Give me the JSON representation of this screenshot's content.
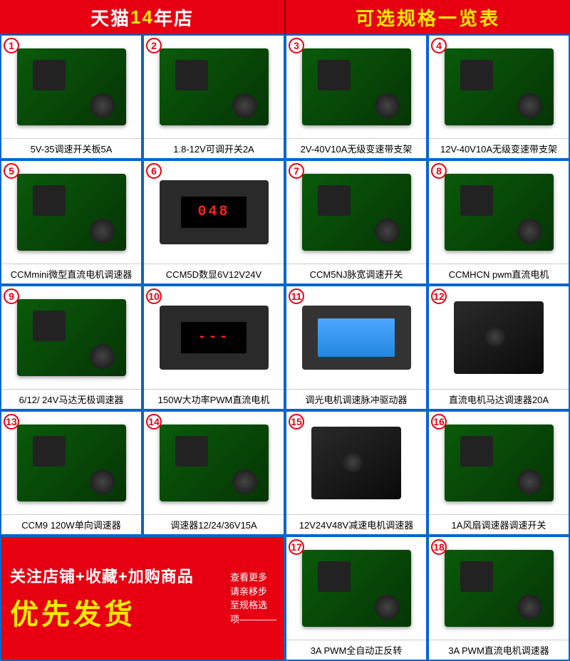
{
  "header": {
    "left_prefix": "天猫",
    "left_highlight": "14",
    "left_suffix": "年店",
    "right": "可选规格一览表"
  },
  "items": [
    {
      "n": "1",
      "label": "5V-35调速开关板5A",
      "type": "pcb"
    },
    {
      "n": "2",
      "label": "1.8-12V可调开关2A",
      "type": "pcb"
    },
    {
      "n": "3",
      "label": "2V-40V10A无级变速带支架",
      "type": "pcb"
    },
    {
      "n": "4",
      "label": "12V-40V10A无级变速带支架",
      "type": "pcb"
    },
    {
      "n": "5",
      "label": "CCMmini微型直流电机调速器",
      "type": "pcb"
    },
    {
      "n": "6",
      "label": "CCM5D数显6V12V24V",
      "type": "digital",
      "readout": "048"
    },
    {
      "n": "7",
      "label": "CCM5NJ脉宽调速开关",
      "type": "pcb"
    },
    {
      "n": "8",
      "label": "CCMHCN pwm直流电机",
      "type": "pcb"
    },
    {
      "n": "9",
      "label": "6/12/ 24V马达无极调速器",
      "type": "pcb"
    },
    {
      "n": "10",
      "label": "150W大功率PWM直流电机",
      "type": "digital",
      "readout": "---"
    },
    {
      "n": "11",
      "label": "调光电机调速脉冲驱动器",
      "type": "lcd"
    },
    {
      "n": "12",
      "label": "直流电机马达调速器20A",
      "type": "box"
    },
    {
      "n": "13",
      "label": "CCM9 120W单向调速器",
      "type": "pcb"
    },
    {
      "n": "14",
      "label": "调速器12/24/36V15A",
      "type": "pcb"
    },
    {
      "n": "15",
      "label": "12V24V48V减速电机调速器",
      "type": "box"
    },
    {
      "n": "16",
      "label": "1A风扇调速器调速开关",
      "type": "pcb"
    },
    {
      "n": "17",
      "label": "3A PWM全自动正反转",
      "type": "pcb"
    },
    {
      "n": "18",
      "label": "3A PWM直流电机调速器",
      "type": "pcb"
    }
  ],
  "promo": {
    "line1": "关注店铺+收藏+加购商品",
    "line2": "优先发货",
    "side1": "查看更多",
    "side2": "请亲移步",
    "side3": "至规格选",
    "side4": "项————"
  },
  "colors": {
    "brand_red": "#e60012",
    "brand_yellow": "#ffeb00",
    "border_blue": "#0066cc",
    "pcb_green": "#0a5a0a"
  }
}
